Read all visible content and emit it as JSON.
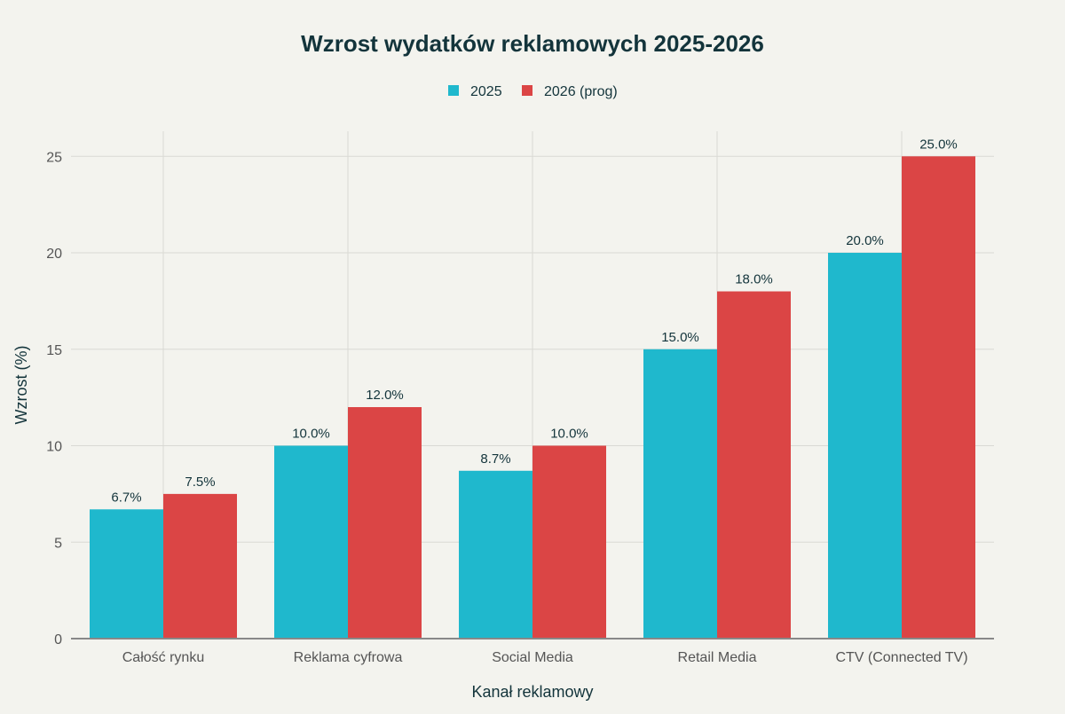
{
  "chart_data": {
    "type": "bar",
    "title": "Wzrost wydatków reklamowych 2025-2026",
    "xlabel": "Kanał reklamowy",
    "ylabel": "Wzrost (%)",
    "ylim": [
      0,
      26.3
    ],
    "yticks": [
      0,
      5,
      10,
      15,
      20,
      25
    ],
    "grid": true,
    "legend_position": "top-center",
    "categories": [
      "Całość rynku",
      "Reklama cyfrowa",
      "Social Media",
      "Retail Media",
      "CTV (Connected TV)"
    ],
    "series": [
      {
        "name": "2025",
        "color": "#1FB8CD",
        "values": [
          6.7,
          10.0,
          8.7,
          15.0,
          20.0
        ]
      },
      {
        "name": "2026 (prog)",
        "color": "#DB4545",
        "values": [
          7.5,
          12.0,
          10.0,
          18.0,
          25.0
        ]
      }
    ]
  }
}
